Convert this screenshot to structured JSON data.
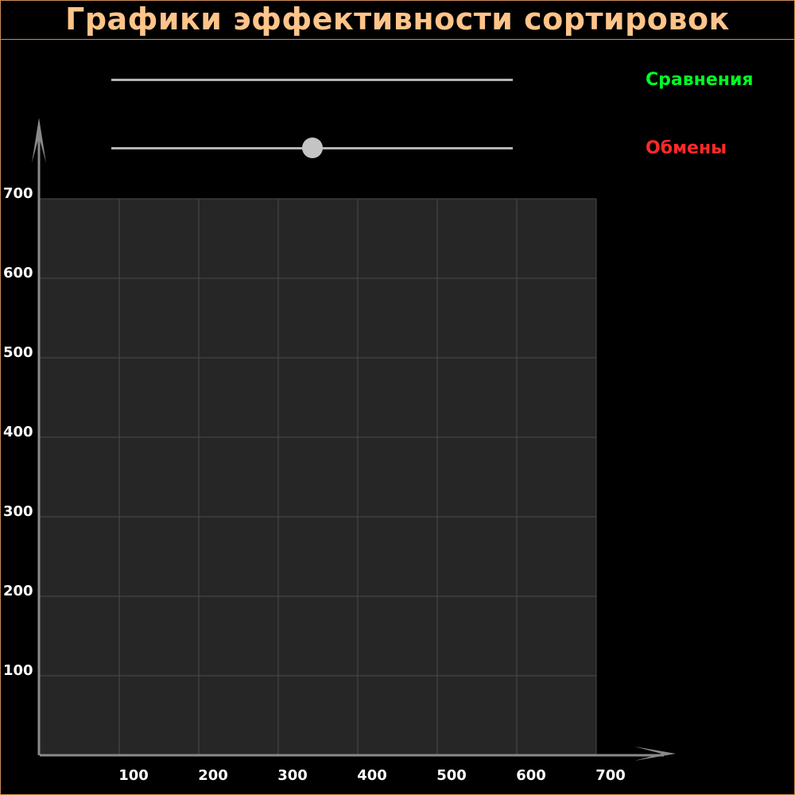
{
  "title": "Графики эффективности сортировок",
  "sliders": [
    {
      "name": "comparisons",
      "label": "Сравнения",
      "label_color": "#00ff22",
      "value": null
    },
    {
      "name": "swaps",
      "label": "Обмены",
      "label_color": "#ff2a2a",
      "value": 0.5
    }
  ],
  "chart_data": {
    "type": "line",
    "series": [],
    "xlim": [
      0,
      700
    ],
    "ylim": [
      0,
      700
    ],
    "x_ticks": [
      100,
      200,
      300,
      400,
      500,
      600,
      700
    ],
    "y_ticks": [
      100,
      200,
      300,
      400,
      500,
      600,
      700
    ],
    "grid": true,
    "colors": {
      "plot_bg": "#262626",
      "grid": "#4a4a4a",
      "axis": "#8a8a8a"
    }
  }
}
